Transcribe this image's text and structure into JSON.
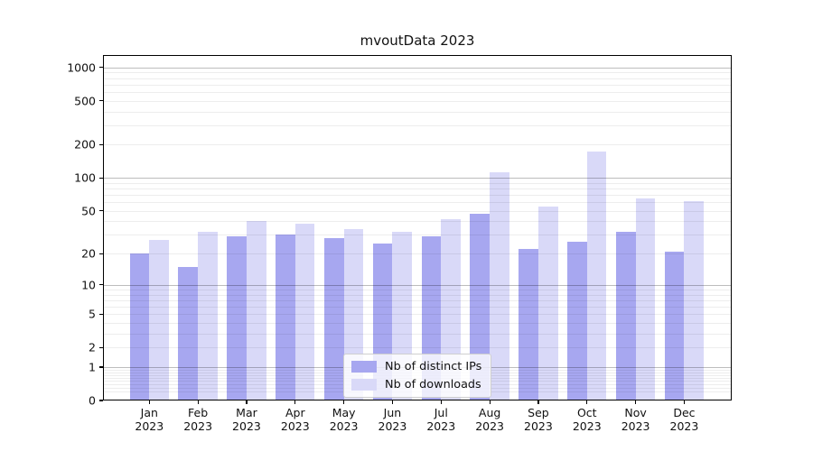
{
  "title": "mvoutData 2023",
  "chart_data": {
    "type": "bar",
    "title": "mvoutData 2023",
    "xlabel": "",
    "ylabel": "",
    "yscale": "log1p",
    "grid": "both",
    "legend_position": "lower center",
    "categories": [
      "Jan 2023",
      "Feb 2023",
      "Mar 2023",
      "Apr 2023",
      "May 2023",
      "Jun 2023",
      "Jul 2023",
      "Aug 2023",
      "Sep 2023",
      "Oct 2023",
      "Nov 2023",
      "Dec 2023"
    ],
    "series": [
      {
        "name": "Nb of distinct IPs",
        "color": "#a7a7f0",
        "values": [
          20,
          15,
          29,
          30,
          28,
          25,
          29,
          47,
          22,
          26,
          32,
          21
        ]
      },
      {
        "name": "Nb of downloads",
        "color": "#d9d9f8",
        "values": [
          27,
          32,
          40,
          38,
          34,
          32,
          42,
          112,
          55,
          175,
          65,
          62
        ]
      }
    ],
    "yticks": [
      0,
      1,
      2,
      5,
      10,
      20,
      50,
      100,
      200,
      500,
      1000
    ],
    "ylim": [
      0,
      1290
    ],
    "colors": {
      "major_grid": "#bdbdbd",
      "minor_grid": "#ededed",
      "spine": "#000000",
      "text": "#111111"
    }
  }
}
